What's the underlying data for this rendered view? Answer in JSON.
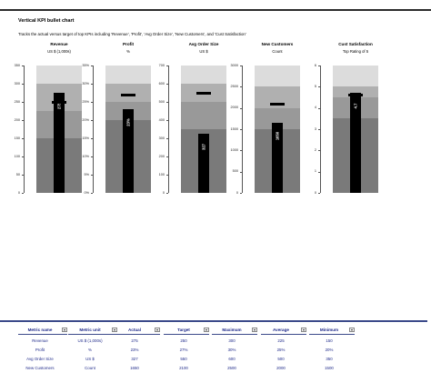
{
  "page": {
    "title": "Vertical KPI bullet chart",
    "subtitle": "Tracks the actual versus target of top KPIs including 'Revenue', 'Profit', 'Avg Order Size', 'New Customers', and 'Cust Satisfaction'"
  },
  "colors": {
    "band_low": "#7a7a7a",
    "band_mid": "#b0b0b0",
    "band_high": "#dcdcdc",
    "actual": "#000000",
    "table_text": "#1f2a8a"
  },
  "chart_data": [
    {
      "type": "bullet",
      "title": "Revenue",
      "unit": "US $ (1,000s)",
      "ylim": [
        0,
        350
      ],
      "ticks": [
        "0",
        "50",
        "100",
        "150",
        "200",
        "250",
        "300",
        "350"
      ],
      "actual": 275,
      "actual_label": "275",
      "target": 250,
      "ranges": {
        "minimum": 150,
        "average": 225,
        "maximum": 300
      }
    },
    {
      "type": "bullet",
      "title": "Profit",
      "unit": "%",
      "ylim": [
        0,
        35
      ],
      "ticks": [
        "0%",
        "5%",
        "10%",
        "15%",
        "20%",
        "25%",
        "30%",
        "35%"
      ],
      "actual": 23,
      "actual_label": "23%",
      "target": 27,
      "ranges": {
        "minimum": 20,
        "average": 25,
        "maximum": 30
      }
    },
    {
      "type": "bullet",
      "title": "Avg Order Size",
      "unit": "US $",
      "ylim": [
        0,
        700
      ],
      "ticks": [
        "0",
        "100",
        "200",
        "300",
        "400",
        "500",
        "600",
        "700"
      ],
      "actual": 327,
      "actual_label": "327",
      "target": 550,
      "ranges": {
        "minimum": 350,
        "average": 500,
        "maximum": 600
      }
    },
    {
      "type": "bullet",
      "title": "New Customers",
      "unit": "Count",
      "ylim": [
        0,
        3000
      ],
      "ticks": [
        "0",
        "500",
        "1000",
        "1500",
        "2000",
        "2500",
        "3000"
      ],
      "actual": 1650,
      "actual_label": "1650",
      "target": 2100,
      "ranges": {
        "minimum": 1500,
        "average": 2000,
        "maximum": 2500
      }
    },
    {
      "type": "bullet",
      "title": "Cust Satisfaction",
      "unit": "Top Rating of 5",
      "ylim": [
        0,
        6
      ],
      "ticks": [
        "0",
        "1",
        "2",
        "3",
        "4",
        "5",
        "6"
      ],
      "actual": 4.7,
      "actual_label": "4.7",
      "target": 4.6,
      "ranges": {
        "minimum": 3.5,
        "average": 4.5,
        "maximum": 5
      }
    }
  ],
  "table": {
    "headers": [
      "Metric name",
      "Metric unit",
      "Actual",
      "Target",
      "Maximum",
      "Average",
      "Minimum"
    ],
    "rows": [
      [
        "Revenue",
        "US $ (1,000s)",
        "275",
        "250",
        "300",
        "225",
        "150"
      ],
      [
        "Profit",
        "%",
        "23%",
        "27%",
        "30%",
        "25%",
        "20%"
      ],
      [
        "Avg Order Size",
        "US $",
        "327",
        "550",
        "600",
        "500",
        "350"
      ],
      [
        "New Customers",
        "Count",
        "1650",
        "2100",
        "2500",
        "2000",
        "1500"
      ]
    ]
  }
}
